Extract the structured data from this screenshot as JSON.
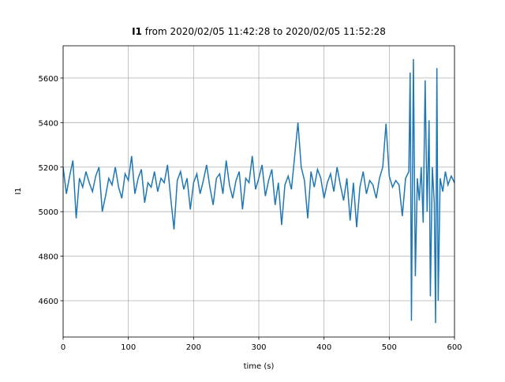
{
  "chart_data": {
    "type": "line",
    "title": [
      "I1",
      "from 2020/02/05 11:42:28 to 2020/02/05 11:52:28"
    ],
    "xlabel": "time (s)",
    "ylabel": "I1",
    "xlim": [
      0,
      600
    ],
    "xticks": [
      0,
      100,
      200,
      300,
      400,
      500,
      600
    ],
    "ylim": [
      4437,
      5745
    ],
    "yticks": [
      4600,
      4800,
      5000,
      5200,
      5400,
      5600
    ],
    "grid": true,
    "series": [
      {
        "color": "#1f77b4",
        "x": [
          0,
          5,
          10,
          15,
          20,
          25,
          30,
          35,
          40,
          45,
          50,
          55,
          60,
          65,
          70,
          75,
          80,
          85,
          90,
          95,
          100,
          105,
          110,
          115,
          120,
          125,
          130,
          135,
          140,
          145,
          150,
          155,
          160,
          165,
          170,
          175,
          180,
          185,
          190,
          195,
          200,
          205,
          210,
          215,
          220,
          225,
          230,
          235,
          240,
          245,
          250,
          255,
          260,
          265,
          270,
          275,
          280,
          285,
          290,
          295,
          300,
          305,
          310,
          315,
          320,
          325,
          330,
          335,
          340,
          345,
          350,
          355,
          360,
          365,
          370,
          375,
          380,
          385,
          390,
          395,
          400,
          405,
          410,
          415,
          420,
          425,
          430,
          435,
          440,
          445,
          450,
          455,
          460,
          465,
          470,
          475,
          480,
          485,
          490,
          495,
          500,
          505,
          510,
          515,
          520,
          525,
          530,
          532,
          534,
          537,
          540,
          543,
          546,
          549,
          552,
          555,
          558,
          561,
          563,
          566,
          569,
          571,
          573,
          575,
          578,
          582,
          586,
          590,
          595,
          600
        ],
        "values": [
          5200,
          5080,
          5160,
          5230,
          4970,
          5150,
          5110,
          5180,
          5130,
          5090,
          5160,
          5200,
          5000,
          5070,
          5150,
          5120,
          5200,
          5110,
          5060,
          5170,
          5140,
          5250,
          5080,
          5150,
          5190,
          5040,
          5130,
          5110,
          5180,
          5090,
          5150,
          5130,
          5210,
          5060,
          4920,
          5140,
          5180,
          5100,
          5150,
          5010,
          5130,
          5170,
          5080,
          5140,
          5210,
          5110,
          5030,
          5150,
          5170,
          5080,
          5230,
          5120,
          5060,
          5140,
          5180,
          5010,
          5150,
          5130,
          5250,
          5100,
          5150,
          5210,
          5070,
          5140,
          5190,
          5030,
          5130,
          4940,
          5120,
          5160,
          5100,
          5250,
          5400,
          5200,
          5140,
          4970,
          5180,
          5110,
          5190,
          5150,
          5060,
          5130,
          5170,
          5090,
          5200,
          5120,
          5050,
          5150,
          4960,
          5130,
          4930,
          5110,
          5180,
          5080,
          5140,
          5120,
          5060,
          5150,
          5200,
          5395,
          5160,
          5110,
          5140,
          5120,
          4980,
          5150,
          5180,
          5625,
          4510,
          5685,
          4710,
          5150,
          5050,
          5200,
          4950,
          5590,
          5000,
          5410,
          4620,
          5200,
          5040,
          4500,
          5645,
          4600,
          5150,
          5090,
          5180,
          5120,
          5160,
          5130
        ]
      }
    ]
  }
}
